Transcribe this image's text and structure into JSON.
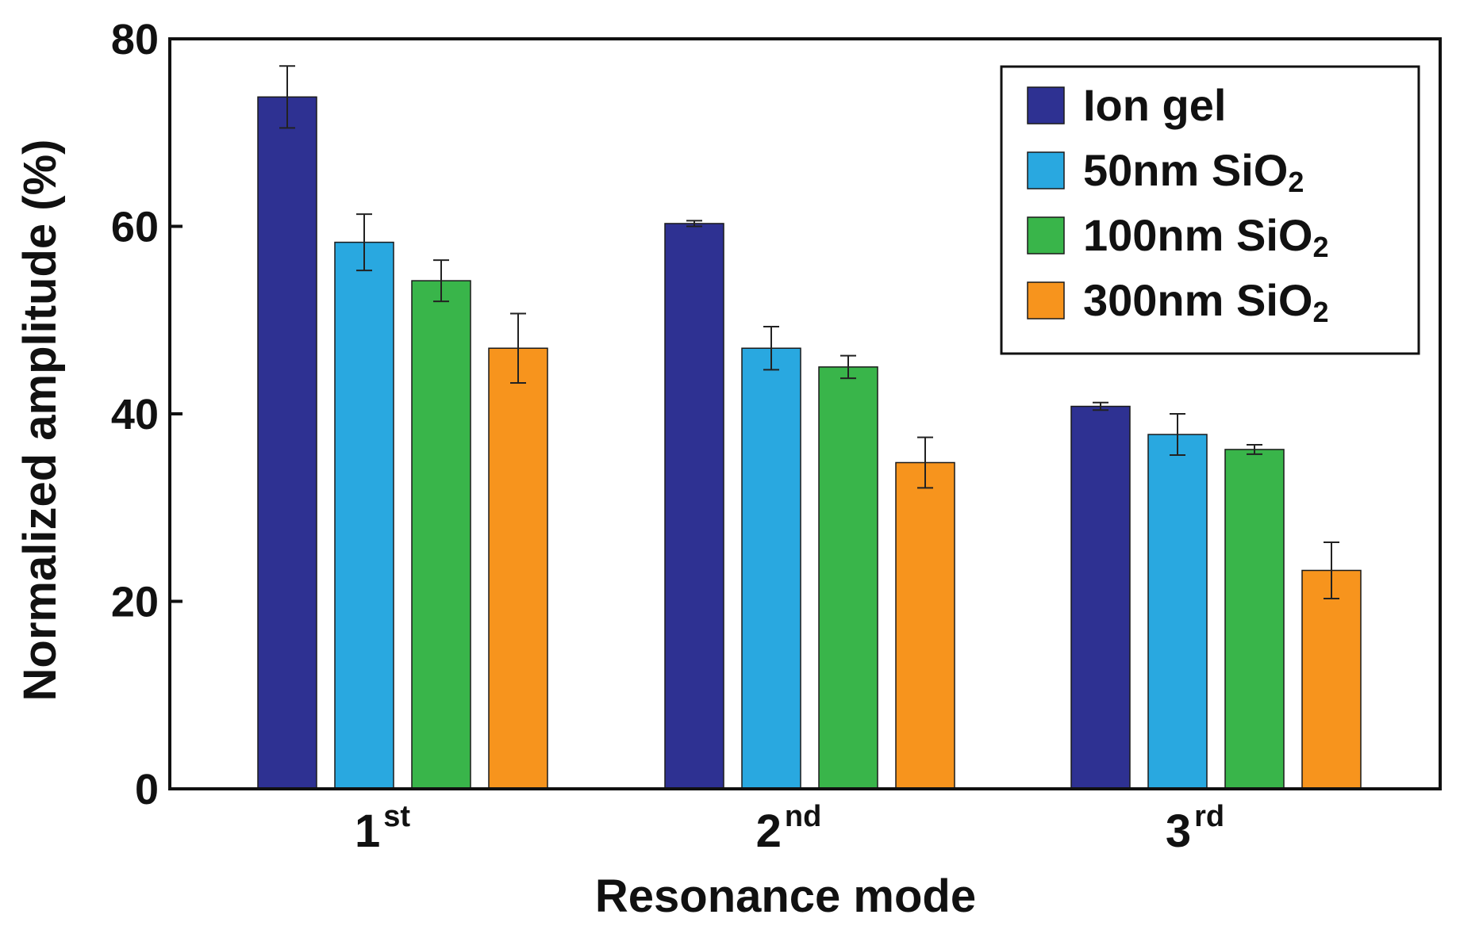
{
  "chart_data": {
    "type": "bar",
    "xlabel": "Resonance mode",
    "ylabel": "Normalized amplitude (%)",
    "ylim": [
      0,
      80
    ],
    "yticks": [
      "0",
      "20",
      "40",
      "60",
      "80"
    ],
    "categories": [
      {
        "base": "1",
        "sup": "st"
      },
      {
        "base": "2",
        "sup": "nd"
      },
      {
        "base": "3",
        "sup": "rd"
      }
    ],
    "series": [
      {
        "name": "Ion gel",
        "name_main": "Ion gel",
        "name_sub": "",
        "color": "#2e3192",
        "values": [
          73.8,
          60.3,
          40.8
        ],
        "errors": [
          3.3,
          0.3,
          0.4
        ]
      },
      {
        "name": "50nm SiO2",
        "name_main": "50nm SiO",
        "name_sub": "2",
        "color": "#29a8e0",
        "values": [
          58.3,
          47.0,
          37.8
        ],
        "errors": [
          3.0,
          2.3,
          2.2
        ]
      },
      {
        "name": "100nm SiO2",
        "name_main": "100nm SiO",
        "name_sub": "2",
        "color": "#39b54a",
        "values": [
          54.2,
          45.0,
          36.2
        ],
        "errors": [
          2.2,
          1.2,
          0.5
        ]
      },
      {
        "name": "300nm SiO2",
        "name_main": "300nm SiO",
        "name_sub": "2",
        "color": "#f7941d",
        "values": [
          47.0,
          34.8,
          23.3
        ],
        "errors": [
          3.7,
          2.7,
          3.0
        ]
      }
    ],
    "grid": false,
    "legend_position": "top-right"
  }
}
